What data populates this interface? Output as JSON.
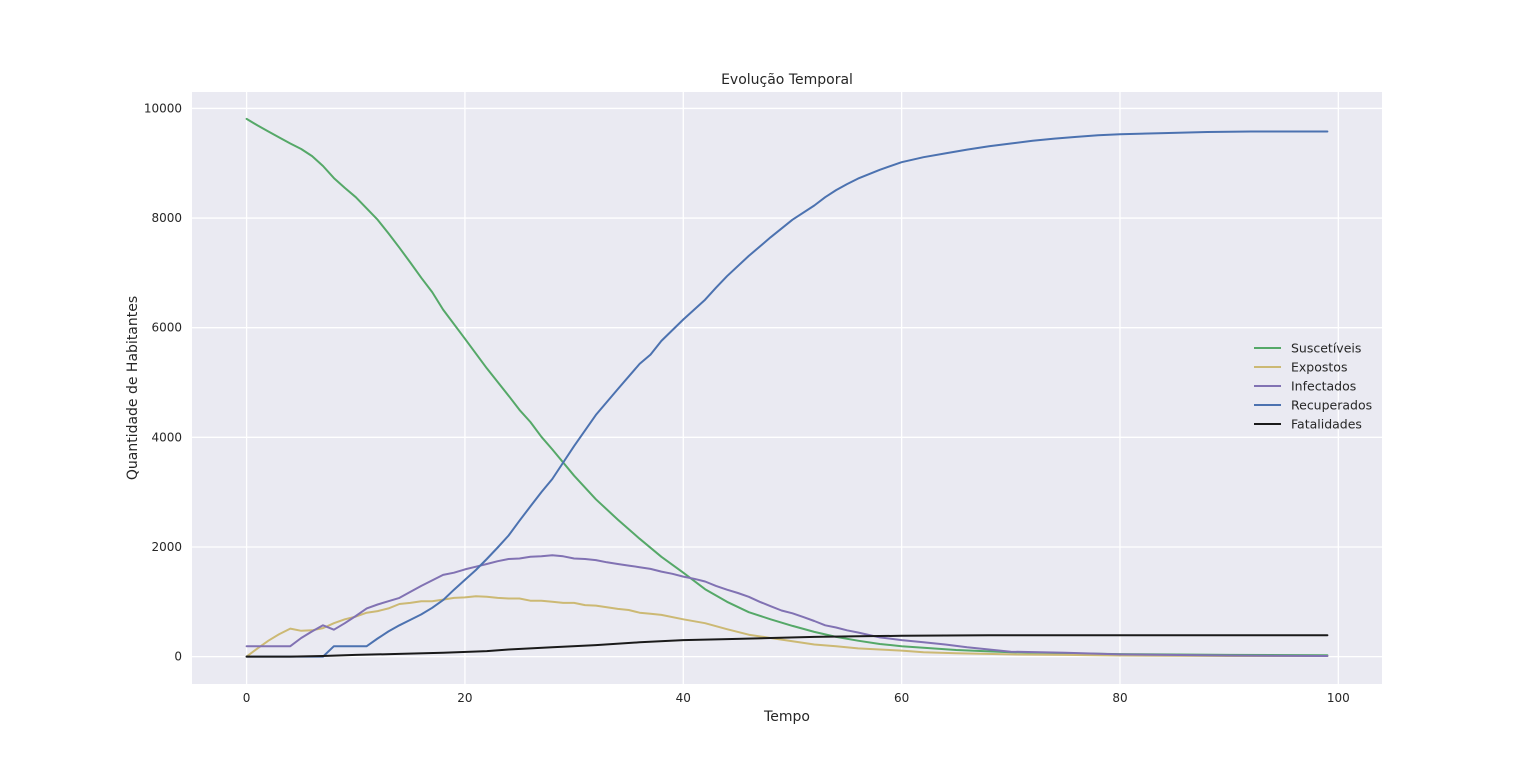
{
  "chart_data": {
    "type": "line",
    "title": "Evolução Temporal",
    "xlabel": "Tempo",
    "ylabel": "Quantidade de Habitantes",
    "xlim": [
      -5,
      104
    ],
    "ylim": [
      -500,
      10300
    ],
    "xticks": [
      0,
      20,
      40,
      60,
      80,
      100
    ],
    "yticks": [
      0,
      2000,
      4000,
      6000,
      8000,
      10000
    ],
    "grid": true,
    "legend_position": "center-right",
    "series": [
      {
        "name": "Suscetíveis",
        "color": "#55a868",
        "x": [
          0,
          1,
          2,
          3,
          4,
          5,
          6,
          7,
          8,
          9,
          10,
          12,
          13,
          14,
          15,
          16,
          17,
          18,
          20,
          22,
          24,
          25,
          26,
          27,
          28,
          30,
          32,
          34,
          36,
          38,
          40,
          42,
          44,
          46,
          48,
          50,
          52,
          54,
          56,
          58,
          60,
          62,
          65,
          70,
          75,
          80,
          90,
          99
        ],
        "y": [
          9810,
          9690,
          9580,
          9470,
          9360,
          9260,
          9130,
          8950,
          8730,
          8550,
          8380,
          7970,
          7720,
          7460,
          7190,
          6910,
          6650,
          6330,
          5800,
          5260,
          4760,
          4500,
          4280,
          4010,
          3780,
          3300,
          2870,
          2500,
          2150,
          1820,
          1530,
          1230,
          1000,
          810,
          680,
          560,
          450,
          360,
          290,
          230,
          190,
          160,
          120,
          80,
          60,
          45,
          30,
          25
        ]
      },
      {
        "name": "Expostos",
        "color": "#ccb974",
        "x": [
          0,
          1,
          2,
          3,
          4,
          5,
          6,
          7,
          8,
          9,
          10,
          11,
          12,
          13,
          14,
          15,
          16,
          17,
          18,
          19,
          20,
          21,
          22,
          23,
          24,
          25,
          26,
          27,
          28,
          29,
          30,
          31,
          32,
          33,
          34,
          35,
          36,
          37,
          38,
          40,
          42,
          44,
          46,
          48,
          50,
          52,
          54,
          56,
          58,
          60,
          62,
          65,
          70,
          75,
          80,
          90,
          99
        ],
        "y": [
          0,
          150,
          290,
          410,
          510,
          470,
          480,
          520,
          610,
          680,
          730,
          800,
          830,
          880,
          960,
          980,
          1010,
          1010,
          1040,
          1070,
          1080,
          1100,
          1090,
          1070,
          1060,
          1060,
          1020,
          1020,
          1000,
          980,
          980,
          940,
          930,
          900,
          870,
          850,
          800,
          780,
          760,
          680,
          610,
          500,
          400,
          340,
          280,
          220,
          190,
          150,
          130,
          110,
          80,
          60,
          40,
          30,
          20,
          10,
          10
        ]
      },
      {
        "name": "Infectados",
        "color": "#8172b3",
        "x": [
          0,
          1,
          2,
          3,
          4,
          5,
          6,
          7,
          8,
          9,
          10,
          11,
          12,
          13,
          14,
          15,
          16,
          17,
          18,
          19,
          20,
          21,
          22,
          23,
          24,
          25,
          26,
          27,
          28,
          29,
          30,
          31,
          32,
          33,
          34,
          35,
          36,
          37,
          38,
          39,
          40,
          41,
          42,
          43,
          44,
          45,
          46,
          47,
          48,
          49,
          50,
          51,
          52,
          53,
          54,
          55,
          56,
          58,
          60,
          62,
          64,
          66,
          68,
          70,
          75,
          80,
          90,
          99
        ],
        "y": [
          190,
          190,
          190,
          190,
          190,
          340,
          460,
          570,
          490,
          610,
          740,
          880,
          950,
          1010,
          1070,
          1180,
          1290,
          1390,
          1490,
          1530,
          1590,
          1640,
          1690,
          1740,
          1780,
          1790,
          1820,
          1830,
          1850,
          1830,
          1790,
          1780,
          1760,
          1720,
          1690,
          1660,
          1630,
          1600,
          1550,
          1510,
          1460,
          1420,
          1370,
          1290,
          1220,
          1160,
          1090,
          1000,
          920,
          840,
          790,
          720,
          650,
          570,
          530,
          480,
          440,
          350,
          300,
          260,
          220,
          170,
          130,
          90,
          70,
          40,
          20,
          10
        ]
      },
      {
        "name": "Recuperados",
        "color": "#4c72b0",
        "x": [
          0,
          1,
          2,
          3,
          4,
          5,
          6,
          7,
          8,
          9,
          10,
          11,
          12,
          13,
          14,
          15,
          16,
          17,
          18,
          19,
          20,
          21,
          22,
          23,
          24,
          25,
          26,
          27,
          28,
          29,
          30,
          32,
          34,
          36,
          37,
          38,
          40,
          42,
          43,
          44,
          46,
          48,
          50,
          52,
          53,
          54,
          55,
          56,
          57,
          58,
          60,
          62,
          64,
          66,
          68,
          70,
          72,
          74,
          76,
          78,
          80,
          84,
          88,
          92,
          96,
          99
        ],
        "y": [
          0,
          0,
          0,
          0,
          0,
          0,
          0,
          0,
          190,
          190,
          190,
          190,
          330,
          460,
          570,
          670,
          770,
          890,
          1030,
          1220,
          1400,
          1580,
          1780,
          1990,
          2210,
          2480,
          2740,
          3000,
          3240,
          3540,
          3840,
          4410,
          4880,
          5340,
          5510,
          5760,
          6150,
          6510,
          6730,
          6940,
          7310,
          7650,
          7970,
          8230,
          8380,
          8510,
          8620,
          8720,
          8800,
          8880,
          9020,
          9110,
          9180,
          9250,
          9310,
          9360,
          9410,
          9450,
          9480,
          9510,
          9530,
          9550,
          9570,
          9580,
          9580,
          9580
        ]
      },
      {
        "name": "Fatalidades",
        "color": "#1a1a1a",
        "x": [
          0,
          4,
          7,
          10,
          14,
          18,
          22,
          24,
          28,
          32,
          36,
          40,
          44,
          48,
          52,
          56,
          60,
          64,
          68,
          80,
          99
        ],
        "y": [
          0,
          0,
          10,
          30,
          50,
          70,
          100,
          130,
          170,
          210,
          260,
          300,
          320,
          340,
          360,
          370,
          380,
          385,
          390,
          390,
          390
        ]
      }
    ]
  }
}
